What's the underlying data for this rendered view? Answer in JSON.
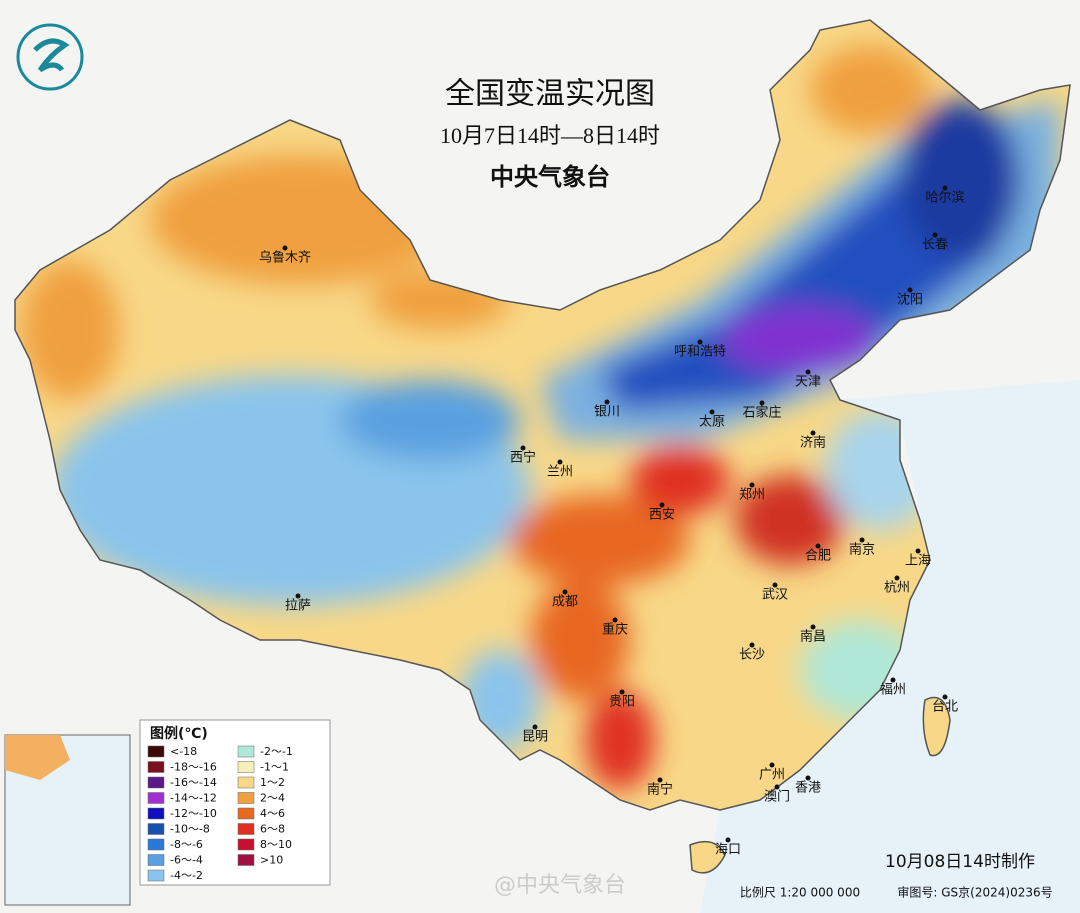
{
  "header": {
    "title": "全国变温实况图",
    "subtitle": "10月7日14时—8日14时",
    "issuer": "中央气象台"
  },
  "cities": [
    "乌鲁木齐",
    "拉萨",
    "西宁",
    "兰州",
    "银川",
    "成都",
    "重庆",
    "贵阳",
    "昆明",
    "南宁",
    "西安",
    "太原",
    "石家庄",
    "郑州",
    "济南",
    "合肥",
    "南京",
    "上海",
    "杭州",
    "武汉",
    "南昌",
    "长沙",
    "福州",
    "台北",
    "广州",
    "澳门",
    "香港",
    "海口",
    "天津",
    "呼和浩特",
    "沈阳",
    "长春",
    "哈尔滨"
  ],
  "legend": {
    "title": "图例(℃)",
    "items": [
      {
        "label": "<-18",
        "color": "#3d0a0a"
      },
      {
        "label": "-18～-16",
        "color": "#7a1020"
      },
      {
        "label": "-16～-14",
        "color": "#5a1a8a"
      },
      {
        "label": "-14～-12",
        "color": "#a030d0"
      },
      {
        "label": "-12～-10",
        "color": "#1010c0"
      },
      {
        "label": "-10～-8",
        "color": "#1850b0"
      },
      {
        "label": "-8～-6",
        "color": "#2a78d8"
      },
      {
        "label": "-6～-4",
        "color": "#5aa0e0"
      },
      {
        "label": "-4～-2",
        "color": "#8ac4ec"
      },
      {
        "label": "-2～-1",
        "color": "#b0e8d8"
      },
      {
        "label": "-1～1",
        "color": "#f6efb8"
      },
      {
        "label": "1～2",
        "color": "#f8d888"
      },
      {
        "label": "2～4",
        "color": "#f0a040"
      },
      {
        "label": "4～6",
        "color": "#e86820"
      },
      {
        "label": "6～8",
        "color": "#e03020"
      },
      {
        "label": "8～10",
        "color": "#c81030"
      },
      {
        "label": ">10",
        "color": "#a01040"
      }
    ]
  },
  "footer": {
    "made": "10月08日14时制作",
    "scale": "比例尺 1:20 000 000",
    "approval": "审图号: GS京(2024)0236号",
    "watermark": "@中央气象台"
  }
}
